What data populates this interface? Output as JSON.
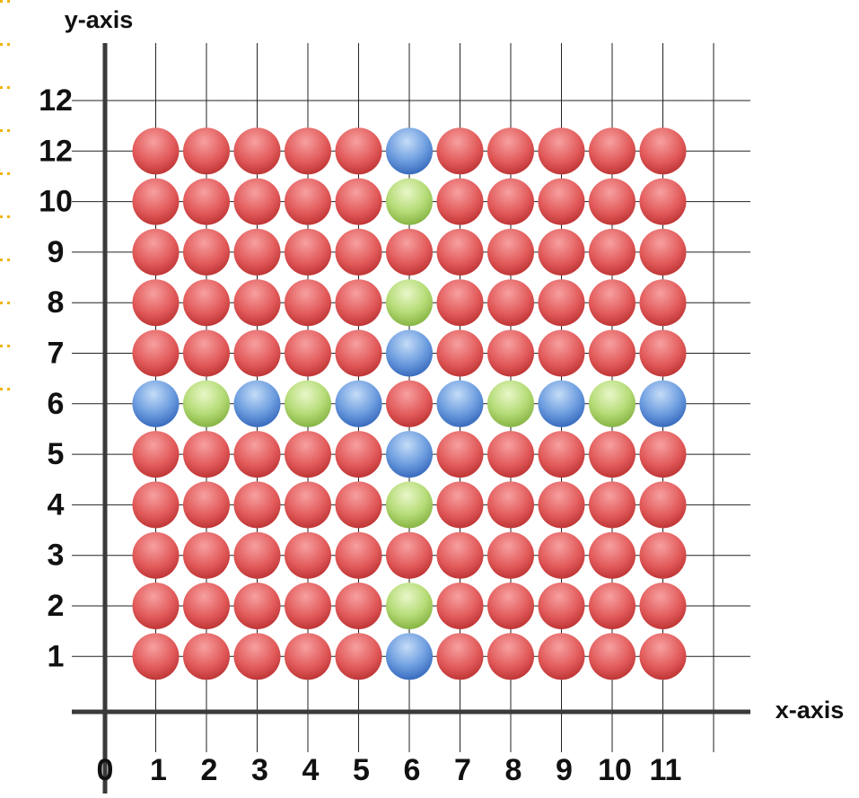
{
  "y_axis_title": "y-axis",
  "x_axis_title": "x-axis",
  "y_labels": [
    "12",
    "12",
    "10",
    "9",
    "8",
    "7",
    "6",
    "5",
    "4",
    "3",
    "2",
    "1"
  ],
  "x_labels": [
    "0",
    "1",
    "2",
    "3",
    "4",
    "5",
    "6",
    "7",
    "8",
    "9",
    "10",
    "11"
  ],
  "rows": [
    [
      "red",
      "red",
      "red",
      "red",
      "red",
      "blue",
      "red",
      "red",
      "red",
      "red",
      "red"
    ],
    [
      "red",
      "red",
      "red",
      "red",
      "red",
      "green",
      "red",
      "red",
      "red",
      "red",
      "red"
    ],
    [
      "red",
      "red",
      "red",
      "red",
      "red",
      "red",
      "red",
      "red",
      "red",
      "red",
      "red"
    ],
    [
      "red",
      "red",
      "red",
      "red",
      "red",
      "green",
      "red",
      "red",
      "red",
      "red",
      "red"
    ],
    [
      "red",
      "red",
      "red",
      "red",
      "red",
      "blue",
      "red",
      "red",
      "red",
      "red",
      "red"
    ],
    [
      "blue",
      "green",
      "blue",
      "green",
      "blue",
      "red",
      "blue",
      "green",
      "blue",
      "green",
      "blue"
    ],
    [
      "red",
      "red",
      "red",
      "red",
      "red",
      "blue",
      "red",
      "red",
      "red",
      "red",
      "red"
    ],
    [
      "red",
      "red",
      "red",
      "red",
      "red",
      "green",
      "red",
      "red",
      "red",
      "red",
      "red"
    ],
    [
      "red",
      "red",
      "red",
      "red",
      "red",
      "red",
      "red",
      "red",
      "red",
      "red",
      "red"
    ],
    [
      "red",
      "red",
      "red",
      "red",
      "red",
      "green",
      "red",
      "red",
      "red",
      "red",
      "red"
    ],
    [
      "red",
      "red",
      "red",
      "red",
      "red",
      "blue",
      "red",
      "red",
      "red",
      "red",
      "red"
    ]
  ]
}
